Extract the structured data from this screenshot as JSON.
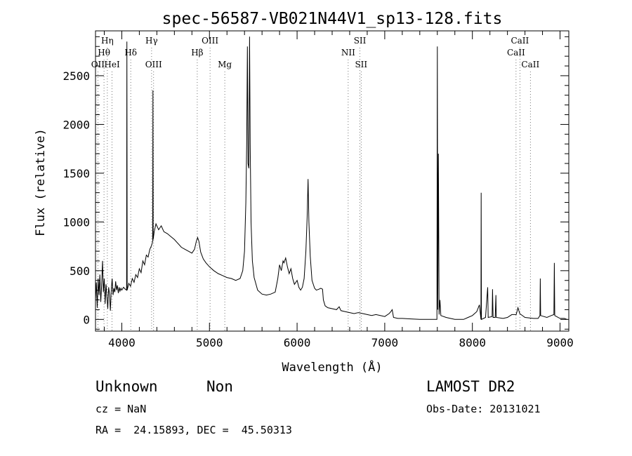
{
  "chart_data": {
    "type": "line",
    "title": "spec-56587-VB021N44V1_sp13-128.fits",
    "xlabel": "Wavelength (Å)",
    "ylabel": "Flux (relative)",
    "xlim": [
      3700,
      9100
    ],
    "ylim": [
      -120,
      2960
    ],
    "xticks": [
      4000,
      5000,
      6000,
      7000,
      8000,
      9000
    ],
    "yticks": [
      0,
      500,
      1000,
      1500,
      2000,
      2500
    ],
    "grid": false,
    "line_color": "#000000",
    "series": [
      {
        "values": [
          [
            3700,
            200
          ],
          [
            3710,
            380
          ],
          [
            3720,
            120
          ],
          [
            3730,
            420
          ],
          [
            3740,
            250
          ],
          [
            3750,
            460
          ],
          [
            3760,
            180
          ],
          [
            3770,
            350
          ],
          [
            3780,
            600
          ],
          [
            3790,
            280
          ],
          [
            3800,
            420
          ],
          [
            3810,
            160
          ],
          [
            3820,
            360
          ],
          [
            3830,
            240
          ],
          [
            3840,
            110
          ],
          [
            3850,
            330
          ],
          [
            3860,
            260
          ],
          [
            3870,
            90
          ],
          [
            3880,
            310
          ],
          [
            3890,
            420
          ],
          [
            3900,
            250
          ],
          [
            3910,
            320
          ],
          [
            3920,
            280
          ],
          [
            3930,
            390
          ],
          [
            3940,
            300
          ],
          [
            3950,
            350
          ],
          [
            3960,
            270
          ],
          [
            3970,
            330
          ],
          [
            3980,
            290
          ],
          [
            3990,
            320
          ],
          [
            4000,
            300
          ],
          [
            4020,
            330
          ],
          [
            4040,
            310
          ],
          [
            4055,
            300
          ],
          [
            4058,
            2850
          ],
          [
            4061,
            300
          ],
          [
            4080,
            370
          ],
          [
            4100,
            340
          ],
          [
            4120,
            420
          ],
          [
            4140,
            380
          ],
          [
            4160,
            460
          ],
          [
            4180,
            430
          ],
          [
            4200,
            520
          ],
          [
            4220,
            480
          ],
          [
            4240,
            600
          ],
          [
            4260,
            560
          ],
          [
            4280,
            660
          ],
          [
            4300,
            640
          ],
          [
            4320,
            720
          ],
          [
            4340,
            760
          ],
          [
            4352,
            800
          ],
          [
            4355,
            2350
          ],
          [
            4358,
            820
          ],
          [
            4370,
            900
          ],
          [
            4390,
            980
          ],
          [
            4420,
            920
          ],
          [
            4450,
            960
          ],
          [
            4480,
            900
          ],
          [
            4520,
            880
          ],
          [
            4560,
            850
          ],
          [
            4600,
            820
          ],
          [
            4640,
            780
          ],
          [
            4680,
            740
          ],
          [
            4720,
            720
          ],
          [
            4760,
            700
          ],
          [
            4800,
            680
          ],
          [
            4830,
            720
          ],
          [
            4850,
            800
          ],
          [
            4865,
            840
          ],
          [
            4880,
            800
          ],
          [
            4900,
            690
          ],
          [
            4930,
            620
          ],
          [
            4960,
            580
          ],
          [
            5000,
            540
          ],
          [
            5050,
            500
          ],
          [
            5100,
            470
          ],
          [
            5150,
            450
          ],
          [
            5200,
            430
          ],
          [
            5250,
            420
          ],
          [
            5300,
            400
          ],
          [
            5350,
            420
          ],
          [
            5380,
            500
          ],
          [
            5400,
            700
          ],
          [
            5415,
            1200
          ],
          [
            5425,
            1800
          ],
          [
            5433,
            2800
          ],
          [
            5440,
            1600
          ],
          [
            5450,
            1550
          ],
          [
            5458,
            2900
          ],
          [
            5465,
            1800
          ],
          [
            5475,
            1000
          ],
          [
            5490,
            600
          ],
          [
            5510,
            430
          ],
          [
            5550,
            300
          ],
          [
            5600,
            260
          ],
          [
            5650,
            250
          ],
          [
            5700,
            260
          ],
          [
            5750,
            280
          ],
          [
            5780,
            420
          ],
          [
            5800,
            560
          ],
          [
            5820,
            500
          ],
          [
            5840,
            600
          ],
          [
            5850,
            580
          ],
          [
            5870,
            630
          ],
          [
            5890,
            540
          ],
          [
            5910,
            470
          ],
          [
            5930,
            520
          ],
          [
            5950,
            420
          ],
          [
            5970,
            360
          ],
          [
            6000,
            400
          ],
          [
            6020,
            330
          ],
          [
            6040,
            300
          ],
          [
            6060,
            330
          ],
          [
            6080,
            420
          ],
          [
            6100,
            700
          ],
          [
            6115,
            1050
          ],
          [
            6125,
            1440
          ],
          [
            6135,
            1000
          ],
          [
            6150,
            650
          ],
          [
            6170,
            400
          ],
          [
            6200,
            320
          ],
          [
            6220,
            300
          ],
          [
            6250,
            310
          ],
          [
            6270,
            320
          ],
          [
            6290,
            310
          ],
          [
            6300,
            200
          ],
          [
            6320,
            140
          ],
          [
            6350,
            120
          ],
          [
            6400,
            110
          ],
          [
            6450,
            100
          ],
          [
            6480,
            130
          ],
          [
            6500,
            90
          ],
          [
            6550,
            80
          ],
          [
            6600,
            70
          ],
          [
            6650,
            60
          ],
          [
            6700,
            70
          ],
          [
            6750,
            60
          ],
          [
            6800,
            50
          ],
          [
            6850,
            40
          ],
          [
            6900,
            50
          ],
          [
            6950,
            40
          ],
          [
            7000,
            30
          ],
          [
            7050,
            60
          ],
          [
            7070,
            80
          ],
          [
            7085,
            100
          ],
          [
            7100,
            20
          ],
          [
            7150,
            10
          ],
          [
            7200,
            10
          ],
          [
            7300,
            5
          ],
          [
            7400,
            0
          ],
          [
            7500,
            0
          ],
          [
            7580,
            0
          ],
          [
            7595,
            0
          ],
          [
            7600,
            2800
          ],
          [
            7605,
            100
          ],
          [
            7612,
            1700
          ],
          [
            7620,
            50
          ],
          [
            7630,
            200
          ],
          [
            7640,
            40
          ],
          [
            7700,
            20
          ],
          [
            7750,
            10
          ],
          [
            7800,
            0
          ],
          [
            7900,
            0
          ],
          [
            7950,
            20
          ],
          [
            8000,
            40
          ],
          [
            8050,
            80
          ],
          [
            8080,
            150
          ],
          [
            8098,
            0
          ],
          [
            8100,
            1300
          ],
          [
            8103,
            0
          ],
          [
            8150,
            20
          ],
          [
            8175,
            330
          ],
          [
            8180,
            20
          ],
          [
            8225,
            30
          ],
          [
            8230,
            310
          ],
          [
            8236,
            20
          ],
          [
            8260,
            20
          ],
          [
            8268,
            250
          ],
          [
            8272,
            20
          ],
          [
            8350,
            10
          ],
          [
            8400,
            20
          ],
          [
            8450,
            50
          ],
          [
            8500,
            50
          ],
          [
            8520,
            120
          ],
          [
            8540,
            60
          ],
          [
            8600,
            20
          ],
          [
            8700,
            10
          ],
          [
            8750,
            10
          ],
          [
            8771,
            40
          ],
          [
            8775,
            420
          ],
          [
            8779,
            40
          ],
          [
            8850,
            20
          ],
          [
            8900,
            40
          ],
          [
            8930,
            50
          ],
          [
            8935,
            580
          ],
          [
            8940,
            40
          ],
          [
            9000,
            10
          ],
          [
            9050,
            10
          ],
          [
            9080,
            0
          ]
        ]
      }
    ],
    "line_markers": [
      {
        "label": "Hη",
        "x": 3835,
        "row": 0
      },
      {
        "label": "Hθ",
        "x": 3797,
        "row": 1
      },
      {
        "label": "OII",
        "x": 3727,
        "row": 2
      },
      {
        "label": "HeI",
        "x": 3889,
        "row": 2
      },
      {
        "label": "Hδ",
        "x": 4102,
        "row": 1
      },
      {
        "label": "Hγ",
        "x": 4340,
        "row": 0
      },
      {
        "label": "OIII",
        "x": 4363,
        "row": 2
      },
      {
        "label": "OIII",
        "x": 5007,
        "row": 0
      },
      {
        "label": "Hβ",
        "x": 4861,
        "row": 1
      },
      {
        "label": "Mg",
        "x": 5175,
        "row": 2
      },
      {
        "label": "SII",
        "x": 6717,
        "row": 0
      },
      {
        "label": "NII",
        "x": 6583,
        "row": 1
      },
      {
        "label": "SII",
        "x": 6731,
        "row": 2
      },
      {
        "label": "CaII",
        "x": 8542,
        "row": 0
      },
      {
        "label": "CaII",
        "x": 8498,
        "row": 1
      },
      {
        "label": "CaII",
        "x": 8662,
        "row": 2
      }
    ]
  },
  "info": {
    "class": "Unknown",
    "subclass": "Non",
    "cz": "cz = NaN",
    "radec": "RA =  24.15893, DEC =  45.50313",
    "survey": "LAMOST DR2",
    "obsdate": "Obs-Date: 20131021"
  }
}
